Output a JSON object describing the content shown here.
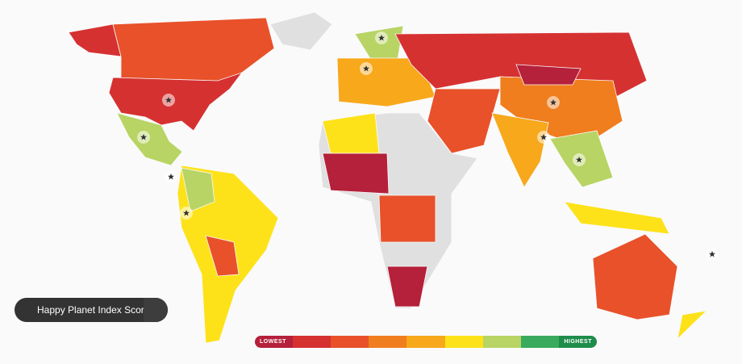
{
  "button": {
    "label": "Happy Planet Index Score"
  },
  "legend": {
    "low_label": "LOWEST",
    "high_label": "HIGHEST",
    "colors": [
      "#b5203a",
      "#d63131",
      "#e8512a",
      "#f07d1e",
      "#f7a81b",
      "#fde21a",
      "#b8d464",
      "#3aaa5e",
      "#1e8d4a"
    ]
  }
}
